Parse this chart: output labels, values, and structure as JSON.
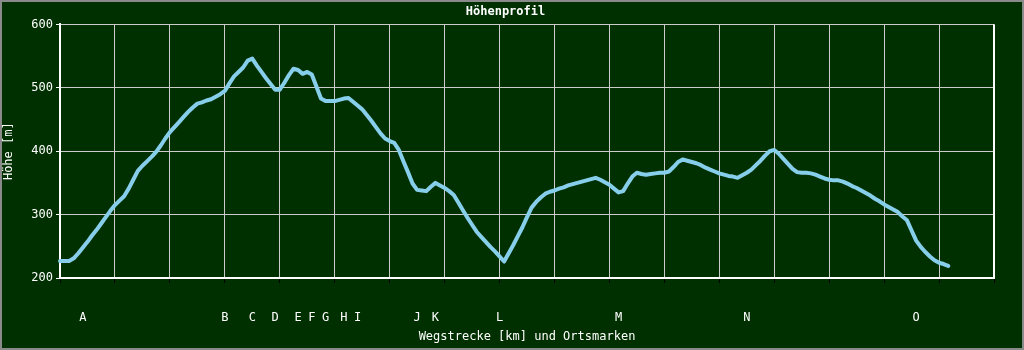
{
  "chart_data": {
    "type": "line",
    "title": "Höhenprofil",
    "xlabel": "Wegstrecke [km] und Ortsmarken",
    "ylabel": "Höhe [m]",
    "categories": [
      null,
      null,
      null,
      null,
      null,
      "A",
      null,
      null,
      null,
      null,
      null,
      null,
      null,
      null,
      null,
      null,
      null,
      null,
      null,
      null,
      null,
      null,
      null,
      null,
      null,
      null,
      null,
      null,
      null,
      null,
      null,
      null,
      null,
      null,
      null,
      null,
      "B",
      null,
      null,
      null,
      null,
      null,
      "C",
      null,
      null,
      null,
      null,
      "D",
      null,
      null,
      null,
      null,
      "E",
      null,
      null,
      "F",
      null,
      null,
      "G",
      null,
      null,
      null,
      "H",
      null,
      null,
      "I",
      null,
      null,
      null,
      null,
      null,
      null,
      null,
      null,
      null,
      null,
      null,
      null,
      "J",
      null,
      null,
      null,
      "K",
      null,
      null,
      null,
      null,
      null,
      null,
      null,
      null,
      null,
      null,
      null,
      null,
      null,
      "L",
      null,
      null,
      null,
      null,
      null,
      null,
      null,
      null,
      null,
      null,
      null,
      null,
      null,
      null,
      null,
      null,
      null,
      null,
      null,
      null,
      null,
      null,
      null,
      null,
      null,
      "M",
      null,
      null,
      null,
      null,
      null,
      null,
      null,
      null,
      null,
      null,
      null,
      null,
      null,
      null,
      null,
      null,
      null,
      null,
      null,
      null,
      null,
      null,
      null,
      null,
      null,
      null,
      null,
      "N",
      null,
      null,
      null,
      null,
      null,
      null,
      null,
      null,
      null,
      null,
      null,
      null,
      null,
      null,
      null,
      null,
      null,
      null,
      null,
      null,
      null,
      null,
      null,
      null,
      null,
      null,
      null,
      null,
      null,
      null,
      null,
      null,
      null,
      null,
      null,
      null,
      "O",
      null,
      null,
      null,
      null,
      null,
      null,
      null,
      null,
      null,
      null,
      null,
      null,
      null,
      null,
      null,
      null,
      null
    ],
    "values": [
      227,
      227,
      227,
      231,
      239,
      248,
      257,
      267,
      276,
      286,
      296,
      306,
      315,
      322,
      329,
      341,
      355,
      369,
      377,
      384,
      391,
      399,
      409,
      420,
      430,
      438,
      446,
      454,
      462,
      469,
      475,
      477,
      480,
      482,
      486,
      490,
      495,
      507,
      518,
      525,
      532,
      543,
      546,
      535,
      525,
      515,
      506,
      497,
      497,
      508,
      520,
      530,
      528,
      522,
      525,
      521,
      502,
      483,
      479,
      479,
      479,
      481,
      483,
      484,
      478,
      472,
      466,
      457,
      448,
      438,
      428,
      420,
      416,
      413,
      402,
      384,
      367,
      349,
      339,
      338,
      337,
      344,
      350,
      346,
      342,
      337,
      331,
      319,
      307,
      295,
      284,
      273,
      265,
      257,
      249,
      242,
      234,
      226,
      239,
      252,
      266,
      280,
      296,
      311,
      320,
      327,
      333,
      336,
      338,
      341,
      343,
      346,
      348,
      350,
      352,
      354,
      356,
      358,
      355,
      351,
      347,
      341,
      335,
      337,
      349,
      360,
      366,
      364,
      363,
      364,
      365,
      366,
      366,
      368,
      375,
      383,
      387,
      385,
      383,
      381,
      378,
      374,
      371,
      368,
      365,
      363,
      361,
      360,
      358,
      362,
      366,
      371,
      378,
      385,
      393,
      400,
      402,
      396,
      388,
      380,
      372,
      367,
      366,
      366,
      365,
      363,
      360,
      357,
      355,
      354,
      354,
      352,
      349,
      345,
      342,
      338,
      334,
      330,
      325,
      321,
      316,
      312,
      308,
      304,
      297,
      291,
      275,
      259,
      249,
      241,
      234,
      228,
      224,
      222,
      219,
      null,
      null,
      null,
      null,
      null,
      null,
      null,
      null,
      null,
      null
    ],
    "color": "#87ceeb",
    "ylim": [
      200,
      600
    ],
    "yticks": [
      200,
      300,
      400,
      500,
      600
    ],
    "grid": true
  }
}
